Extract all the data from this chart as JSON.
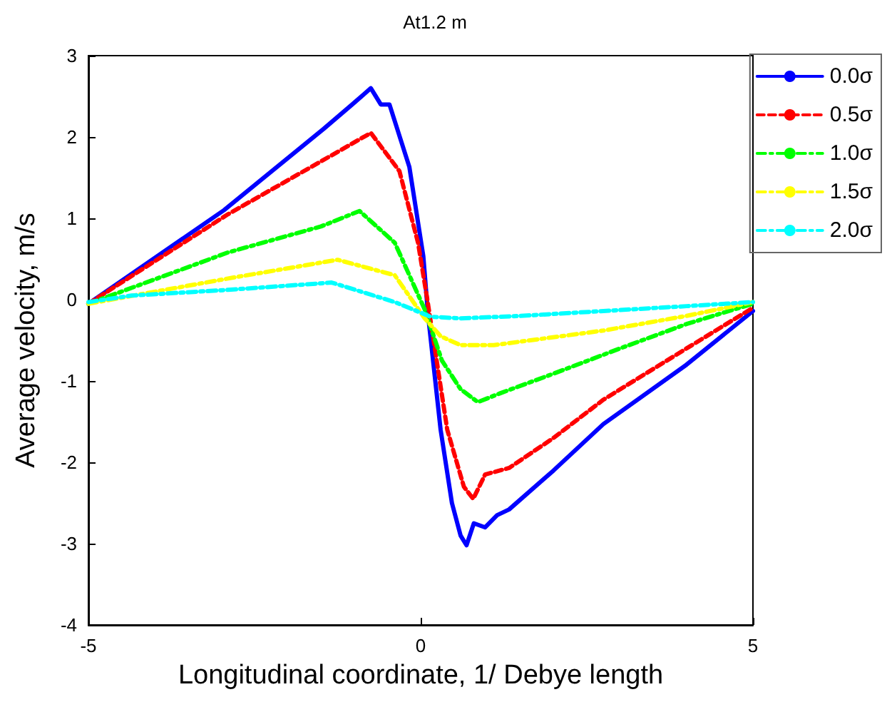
{
  "chart_data": {
    "type": "line",
    "title": "At1.2 m",
    "xlabel": "Longitudinal coordinate, 1/ Debye length",
    "ylabel": "Average velocity, m/s",
    "xlim": [
      -5,
      5
    ],
    "xticks": [
      -5,
      0,
      5
    ],
    "ylim": [
      -4,
      3
    ],
    "yticks": [
      -4,
      -3,
      -2,
      -1,
      0,
      1,
      2,
      3
    ],
    "grid": false,
    "legend": "top right",
    "marker": "none",
    "series": [
      {
        "name": "0.0σ",
        "color": "#0000ff",
        "line_style": "solid",
        "x": [
          -5,
          -2.96,
          -1.46,
          -1.03,
          -0.75,
          -0.6,
          -0.47,
          -0.17,
          0.04,
          0.11,
          0.3,
          0.47,
          0.6,
          0.69,
          0.8,
          0.97,
          1.15,
          1.33,
          2.0,
          2.75,
          4.0,
          5
        ],
        "values": [
          -0.05,
          1.1,
          2.1,
          2.4,
          2.6,
          2.4,
          2.4,
          1.63,
          0.53,
          -0.18,
          -1.6,
          -2.5,
          -2.9,
          -3.02,
          -2.75,
          -2.8,
          -2.65,
          -2.58,
          -2.1,
          -1.53,
          -0.8,
          -0.14
        ]
      },
      {
        "name": "0.5σ",
        "color": "#ff0000",
        "line_style": "dashed",
        "x": [
          -5,
          -2.9,
          -1.5,
          -0.75,
          -0.32,
          -0.04,
          0.1,
          0.4,
          0.65,
          0.79,
          0.97,
          1.33,
          2.0,
          2.75,
          4.0,
          5
        ],
        "values": [
          -0.05,
          1.05,
          1.7,
          2.05,
          1.58,
          0.7,
          0.0,
          -1.6,
          -2.3,
          -2.45,
          -2.15,
          -2.07,
          -1.7,
          -1.23,
          -0.6,
          -0.1
        ]
      },
      {
        "name": "1.0σ",
        "color": "#00ff00",
        "line_style": "dashdot",
        "x": [
          -5,
          -2.9,
          -1.5,
          -0.92,
          -0.39,
          0.06,
          0.32,
          0.6,
          0.86,
          1.2,
          2.0,
          3.0,
          4.0,
          5
        ],
        "values": [
          -0.05,
          0.58,
          0.9,
          1.09,
          0.7,
          -0.12,
          -0.75,
          -1.1,
          -1.26,
          -1.15,
          -0.91,
          -0.6,
          -0.3,
          -0.05
        ]
      },
      {
        "name": "1.5σ",
        "color": "#ffff00",
        "line_style": "dashdot",
        "x": [
          -5,
          -2.9,
          -1.25,
          -0.39,
          0.06,
          0.3,
          0.6,
          1.1,
          2.75,
          4.0,
          5
        ],
        "values": [
          -0.05,
          0.26,
          0.49,
          0.3,
          -0.23,
          -0.45,
          -0.56,
          -0.56,
          -0.38,
          -0.2,
          -0.03
        ]
      },
      {
        "name": "2.0σ",
        "color": "#00ffff",
        "line_style": "dashdot",
        "x": [
          -5,
          -4.35,
          -2.9,
          -1.34,
          -0.39,
          0.15,
          0.6,
          1.5,
          2.75,
          4.0,
          5
        ],
        "values": [
          -0.03,
          0.05,
          0.12,
          0.21,
          -0.03,
          -0.21,
          -0.23,
          -0.2,
          -0.14,
          -0.08,
          -0.03
        ]
      }
    ]
  }
}
